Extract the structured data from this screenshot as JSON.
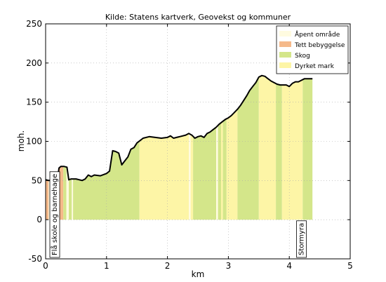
{
  "chart_data": {
    "type": "area",
    "title": "Kilde: Statens kartverk, Geovekst og kommuner",
    "xlabel": "km",
    "ylabel": "moh.",
    "xlim": [
      0,
      5
    ],
    "ylim": [
      -50,
      250
    ],
    "x_ticks": [
      0,
      1,
      2,
      3,
      4,
      5
    ],
    "y_ticks": [
      -50,
      0,
      50,
      100,
      150,
      200,
      250
    ],
    "grid": true,
    "legend_position": "top-right",
    "legend": [
      {
        "name": "Åpent område",
        "color": "#fffbe0"
      },
      {
        "name": "Tett bebyggelse",
        "color": "#f5b98a"
      },
      {
        "name": "Skog",
        "color": "#d4e68a"
      },
      {
        "name": "Dyrket mark",
        "color": "#fdf5a6"
      }
    ],
    "land_use": [
      {
        "from": 0.0,
        "to": 0.05,
        "type": "Tett bebyggelse"
      },
      {
        "from": 0.05,
        "to": 0.2,
        "type": "Åpent område"
      },
      {
        "from": 0.2,
        "to": 0.29,
        "type": "Tett bebyggelse"
      },
      {
        "from": 0.29,
        "to": 0.34,
        "type": "Skog"
      },
      {
        "from": 0.34,
        "to": 0.38,
        "type": "Åpent område"
      },
      {
        "from": 0.38,
        "to": 0.43,
        "type": "Skog"
      },
      {
        "from": 0.43,
        "to": 0.45,
        "type": "Åpent område"
      },
      {
        "from": 0.45,
        "to": 1.54,
        "type": "Skog"
      },
      {
        "from": 1.54,
        "to": 2.35,
        "type": "Dyrket mark"
      },
      {
        "from": 2.35,
        "to": 2.38,
        "type": "Åpent område"
      },
      {
        "from": 2.38,
        "to": 2.42,
        "type": "Dyrket mark"
      },
      {
        "from": 2.42,
        "to": 2.8,
        "type": "Skog"
      },
      {
        "from": 2.8,
        "to": 2.83,
        "type": "Åpent område"
      },
      {
        "from": 2.83,
        "to": 2.88,
        "type": "Skog"
      },
      {
        "from": 2.88,
        "to": 2.91,
        "type": "Dyrket mark"
      },
      {
        "from": 2.91,
        "to": 2.97,
        "type": "Skog"
      },
      {
        "from": 2.97,
        "to": 3.15,
        "type": "Dyrket mark"
      },
      {
        "from": 3.15,
        "to": 3.5,
        "type": "Skog"
      },
      {
        "from": 3.5,
        "to": 3.78,
        "type": "Dyrket mark"
      },
      {
        "from": 3.78,
        "to": 3.88,
        "type": "Skog"
      },
      {
        "from": 3.88,
        "to": 4.22,
        "type": "Dyrket mark"
      },
      {
        "from": 4.22,
        "to": 4.38,
        "type": "Skog"
      }
    ],
    "elevation_profile": {
      "x": [
        0.0,
        0.05,
        0.08,
        0.15,
        0.2,
        0.22,
        0.25,
        0.3,
        0.35,
        0.38,
        0.42,
        0.5,
        0.6,
        0.65,
        0.7,
        0.75,
        0.8,
        0.9,
        1.0,
        1.05,
        1.1,
        1.15,
        1.2,
        1.25,
        1.3,
        1.35,
        1.4,
        1.45,
        1.5,
        1.55,
        1.6,
        1.7,
        1.8,
        1.9,
        2.0,
        2.05,
        2.1,
        2.15,
        2.2,
        2.3,
        2.35,
        2.4,
        2.45,
        2.5,
        2.55,
        2.6,
        2.65,
        2.7,
        2.75,
        2.8,
        2.85,
        2.9,
        2.95,
        3.0,
        3.05,
        3.1,
        3.15,
        3.2,
        3.25,
        3.3,
        3.35,
        3.4,
        3.45,
        3.5,
        3.55,
        3.6,
        3.65,
        3.7,
        3.75,
        3.8,
        3.85,
        3.9,
        3.95,
        4.0,
        4.05,
        4.1,
        4.15,
        4.2,
        4.25,
        4.3,
        4.38
      ],
      "y": [
        51,
        50,
        50,
        52,
        55,
        66,
        68,
        68,
        67,
        51,
        52,
        52,
        50,
        52,
        57,
        55,
        57,
        56,
        59,
        62,
        88,
        87,
        85,
        70,
        75,
        80,
        90,
        92,
        98,
        101,
        104,
        106,
        105,
        104,
        105,
        107,
        104,
        105,
        106,
        108,
        110,
        108,
        104,
        106,
        107,
        105,
        110,
        112,
        115,
        118,
        122,
        125,
        128,
        130,
        133,
        137,
        141,
        146,
        152,
        158,
        165,
        170,
        175,
        182,
        184,
        183,
        180,
        177,
        175,
        173,
        172,
        172,
        172,
        170,
        174,
        176,
        176,
        178,
        180,
        180,
        180
      ]
    },
    "annotations": [
      {
        "text": "Flå skole og barnehage",
        "x": 0.15
      },
      {
        "text": "Stormyra",
        "x": 4.2
      }
    ]
  }
}
